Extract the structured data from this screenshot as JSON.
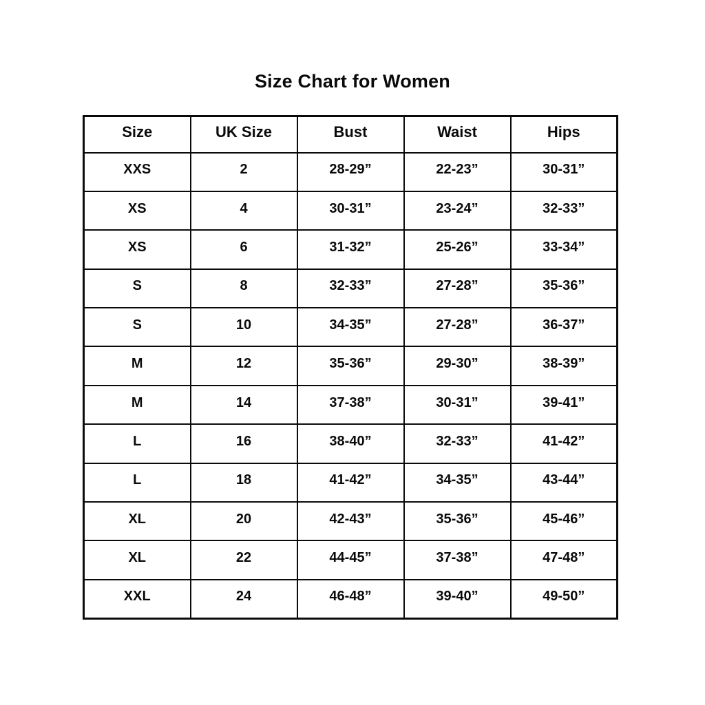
{
  "title": "Size Chart for Women",
  "chart_data": {
    "type": "table",
    "title": "Size Chart for Women",
    "columns": [
      "Size",
      "UK Size",
      "Bust",
      "Waist",
      "Hips"
    ],
    "rows": [
      [
        "XXS",
        "2",
        "28-29”",
        "22-23”",
        "30-31”"
      ],
      [
        "XS",
        "4",
        "30-31”",
        "23-24”",
        "32-33”"
      ],
      [
        "XS",
        "6",
        "31-32”",
        "25-26”",
        "33-34”"
      ],
      [
        "S",
        "8",
        "32-33”",
        "27-28”",
        "35-36”"
      ],
      [
        "S",
        "10",
        "34-35”",
        "27-28”",
        "36-37”"
      ],
      [
        "M",
        "12",
        "35-36”",
        "29-30”",
        "38-39”"
      ],
      [
        "M",
        "14",
        "37-38”",
        "30-31”",
        "39-41”"
      ],
      [
        "L",
        "16",
        "38-40”",
        "32-33”",
        "41-42”"
      ],
      [
        "L",
        "18",
        "41-42”",
        "34-35”",
        "43-44”"
      ],
      [
        "XL",
        "20",
        "42-43”",
        "35-36”",
        "45-46”"
      ],
      [
        "XL",
        "22",
        "44-45”",
        "37-38”",
        "47-48”"
      ],
      [
        "XXL",
        "24",
        "46-48”",
        "39-40”",
        "49-50”"
      ]
    ],
    "text_color": "#0a0a0a",
    "border_color": "#0a0a0a",
    "background_color": "#ffffff"
  }
}
